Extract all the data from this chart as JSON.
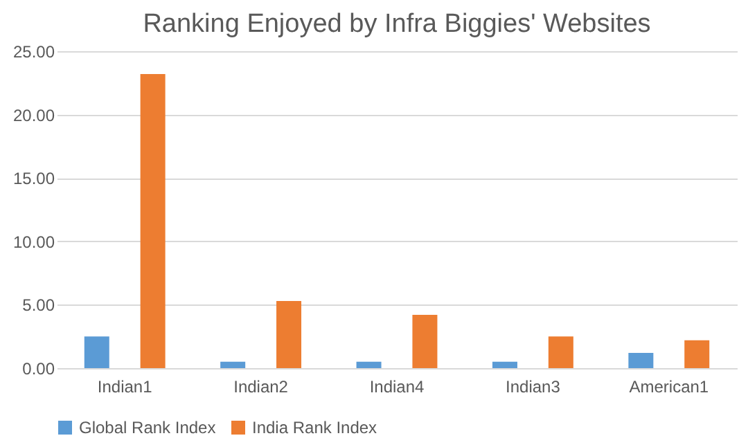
{
  "chart_data": {
    "type": "bar",
    "title": "Ranking Enjoyed by Infra Biggies' Websites",
    "categories": [
      "Indian1",
      "Indian2",
      "Indian4",
      "Indian3",
      "American1"
    ],
    "series": [
      {
        "name": "Global Rank Index",
        "color": "#5b9bd5",
        "values": [
          2.5,
          0.5,
          0.5,
          0.5,
          1.2
        ]
      },
      {
        "name": "India Rank Index",
        "color": "#ed7d31",
        "values": [
          23.2,
          5.3,
          4.2,
          2.5,
          2.2
        ]
      }
    ],
    "ylim": [
      0,
      25
    ],
    "yticks": [
      {
        "value": 0,
        "label": "0.00"
      },
      {
        "value": 5,
        "label": "5.00"
      },
      {
        "value": 10,
        "label": "10.00"
      },
      {
        "value": 15,
        "label": "15.00"
      },
      {
        "value": 20,
        "label": "20.00"
      },
      {
        "value": 25,
        "label": "25.00"
      }
    ],
    "grid": "y",
    "legend": "bottom"
  }
}
